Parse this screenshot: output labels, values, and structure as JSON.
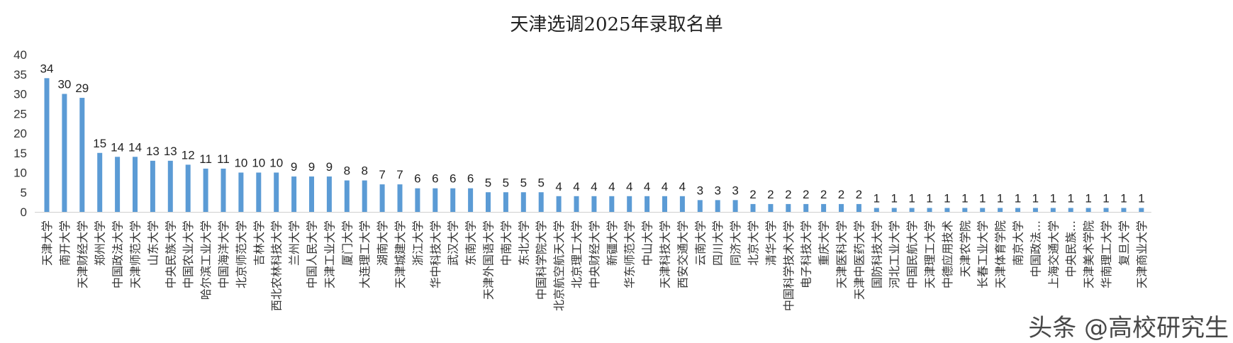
{
  "chart_data": {
    "type": "bar",
    "title": "天津选调2025年录取名单",
    "xlabel": "",
    "ylabel": "",
    "ylim": [
      0,
      40
    ],
    "yticks": [
      0,
      5,
      10,
      15,
      20,
      25,
      30,
      35,
      40
    ],
    "grid": false,
    "legend": "none",
    "bar_color": "#5b9bd5",
    "categories": [
      "天津大学",
      "南开大学",
      "天津财经大学",
      "郑州大学",
      "中国政法大学",
      "天津师范大学",
      "山东大学",
      "中央民族大学",
      "中国农业大学",
      "哈尔滨工业大学",
      "中国海洋大学",
      "北京师范大学",
      "吉林大学",
      "西北农林科技大学",
      "兰州大学",
      "中国人民大学",
      "天津工业大学",
      "厦门大学",
      "大连理工大学",
      "湖南大学",
      "天津城建大学",
      "浙江大学",
      "华中科技大学",
      "武汉大学",
      "东南大学",
      "天津外国语大学",
      "中南大学",
      "东北大学",
      "中国科学院大学",
      "北京航空航天大学",
      "北京理工大学",
      "中央财经大学",
      "新疆大学",
      "华东师范大学",
      "中山大学",
      "天津科技大学",
      "西安交通大学",
      "云南大学",
      "四川大学",
      "同济大学",
      "北京大学",
      "清华大学",
      "中国科学技术大学",
      "电子科技大学",
      "重庆大学",
      "天津医科大学",
      "天津中医药大学",
      "国防科技大学",
      "河北工业大学",
      "中国民航大学",
      "天津理工大学",
      "中德应用技术",
      "天津农学院",
      "长春工业大学",
      "天津体育学院",
      "南京大学",
      "中国政法…",
      "上海交通大学",
      "中央民族…",
      "天津美术学院",
      "华南理工大学",
      "复旦大学",
      "天津商业大学"
    ],
    "values": [
      34,
      30,
      29,
      15,
      14,
      14,
      13,
      13,
      12,
      11,
      11,
      10,
      10,
      10,
      9,
      9,
      9,
      8,
      8,
      7,
      7,
      6,
      6,
      6,
      6,
      5,
      5,
      5,
      5,
      4,
      4,
      4,
      4,
      4,
      4,
      4,
      4,
      3,
      3,
      3,
      2,
      2,
      2,
      2,
      2,
      2,
      2,
      1,
      1,
      1,
      1,
      1,
      1,
      1,
      1,
      1,
      1,
      1,
      1,
      1,
      1,
      1,
      1
    ]
  },
  "watermark": "头条 @高校研究生"
}
